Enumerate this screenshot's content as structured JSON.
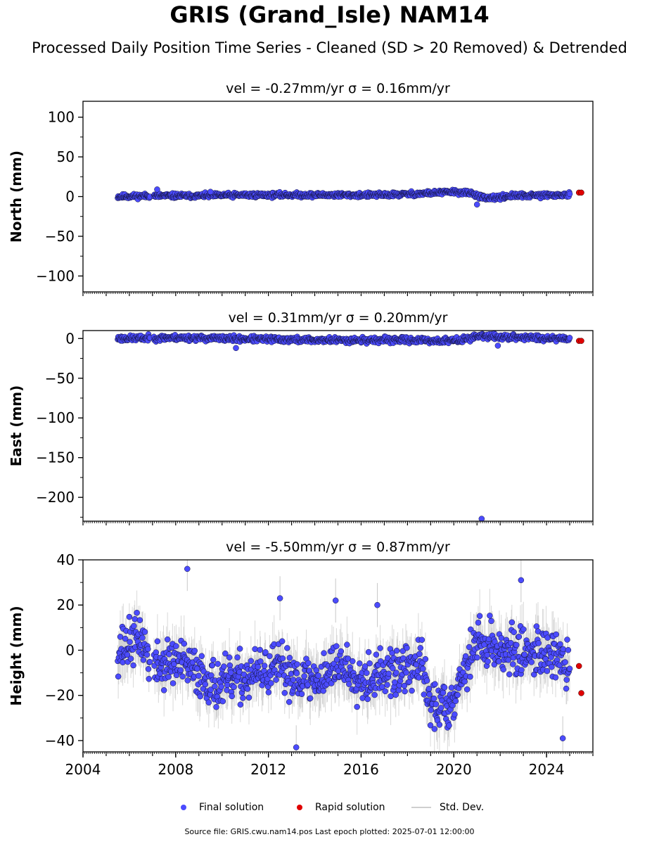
{
  "title": "GRIS (Grand_Isle) NAM14",
  "subtitle": "Processed Daily Position Time Series - Cleaned (SD > 20 Removed) & Detrended",
  "footer": "Source file: GRIS.cwu.nam14.pos  Last epoch plotted: 2025-07-01 12:00:00",
  "legend": {
    "final_label": "Final solution",
    "rapid_label": "Rapid solution",
    "std_label": "Std. Dev."
  },
  "colors": {
    "final": "#4b4bff",
    "final_edge": "#111133",
    "rapid": "#e00000",
    "std": "#c8c8c8"
  },
  "chart_data": [
    {
      "type": "scatter",
      "panel": "north",
      "title": "vel = -0.27mm/yr   σ = 0.16mm/yr",
      "ylabel": "North (mm)",
      "xlim": [
        2004,
        2026
      ],
      "ylim": [
        -120,
        120
      ],
      "yticks": [
        -100,
        -50,
        0,
        50,
        100
      ],
      "ytick_labels": [
        "−100",
        "−50",
        "0",
        "50",
        "100"
      ],
      "x_span": [
        2005.5,
        2025.0
      ],
      "spread": 1.8,
      "trend_x": [
        2005.5,
        2007.0,
        2009.0,
        2011.0,
        2013.0,
        2015.0,
        2017.0,
        2018.8,
        2020.0,
        2020.8,
        2021.4,
        2022.5,
        2025.0
      ],
      "trend_y": [
        0,
        1,
        1,
        2,
        2,
        2,
        2,
        4,
        6,
        4,
        -3,
        1,
        2
      ],
      "outliers": [
        {
          "x": 2007.2,
          "y": 9
        },
        {
          "x": 2021.0,
          "y": -10
        },
        {
          "x": 2009.5,
          "y": 6
        }
      ],
      "rapid": [
        {
          "x": 2025.4,
          "y": 5
        },
        {
          "x": 2025.5,
          "y": 5
        }
      ],
      "seed": 11
    },
    {
      "type": "scatter",
      "panel": "east",
      "title": "vel = 0.31mm/yr   σ = 0.20mm/yr",
      "ylabel": "East (mm)",
      "xlim": [
        2004,
        2026
      ],
      "ylim": [
        -230,
        10
      ],
      "yticks": [
        -200,
        -150,
        -100,
        -50,
        0
      ],
      "ytick_labels": [
        "−200",
        "−150",
        "−100",
        "−50",
        "0"
      ],
      "x_span": [
        2005.5,
        2025.0
      ],
      "spread": 2.2,
      "trend_x": [
        2005.5,
        2008.0,
        2010.0,
        2014.0,
        2018.0,
        2019.5,
        2020.3,
        2021.0,
        2022.0,
        2025.0
      ],
      "trend_y": [
        0,
        1,
        0,
        -2,
        -2,
        -3,
        -2,
        3,
        2,
        0
      ],
      "outliers": [
        {
          "x": 2010.6,
          "y": -12
        },
        {
          "x": 2021.9,
          "y": -9
        },
        {
          "x": 2021.2,
          "y": -227
        }
      ],
      "rapid": [
        {
          "x": 2025.4,
          "y": -3
        },
        {
          "x": 2025.5,
          "y": -3
        }
      ],
      "seed": 23
    },
    {
      "type": "scatter",
      "panel": "height",
      "title": "vel = -5.50mm/yr   σ = 0.87mm/yr",
      "ylabel": "Height (mm)",
      "xlim": [
        2004,
        2026
      ],
      "ylim": [
        -45,
        40
      ],
      "yticks": [
        -40,
        -20,
        0,
        20,
        40
      ],
      "ytick_labels": [
        "−40",
        "−20",
        "0",
        "20",
        "40"
      ],
      "xticks": [
        2004,
        2008,
        2012,
        2016,
        2020,
        2024
      ],
      "xtick_labels": [
        "2004",
        "2008",
        "2012",
        "2016",
        "2020",
        "2024"
      ],
      "x_span": [
        2005.5,
        2025.0
      ],
      "spread": 6.5,
      "trend_x": [
        2005.5,
        2006.5,
        2007.0,
        2008.0,
        2009.0,
        2009.8,
        2011.0,
        2012.5,
        2014.0,
        2015.0,
        2016.0,
        2017.5,
        2018.6,
        2019.0,
        2019.8,
        2020.5,
        2021.0,
        2022.5,
        2024.0,
        2025.0
      ],
      "trend_y": [
        0,
        6,
        -8,
        -5,
        -10,
        -16,
        -12,
        -8,
        -14,
        -6,
        -12,
        -10,
        -6,
        -25,
        -24,
        -8,
        4,
        -1,
        0,
        -8
      ],
      "outliers": [
        {
          "x": 2008.5,
          "y": 36
        },
        {
          "x": 2012.5,
          "y": 23
        },
        {
          "x": 2013.2,
          "y": -43
        },
        {
          "x": 2022.9,
          "y": 31
        },
        {
          "x": 2024.7,
          "y": -39
        },
        {
          "x": 2016.7,
          "y": 20
        },
        {
          "x": 2014.9,
          "y": 22
        }
      ],
      "rapid": [
        {
          "x": 2025.4,
          "y": -7
        },
        {
          "x": 2025.5,
          "y": -19
        }
      ],
      "seed": 37
    }
  ]
}
